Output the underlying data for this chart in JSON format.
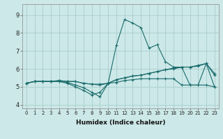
{
  "xlabel": "Humidex (Indice chaleur)",
  "ylabel": "",
  "background_color": "#cce8e8",
  "grid_color": "#aacccc",
  "line_color": "#1a6b6b",
  "xlim": [
    -0.5,
    23.5
  ],
  "ylim": [
    3.8,
    9.6
  ],
  "xticks": [
    0,
    1,
    2,
    3,
    4,
    5,
    6,
    7,
    8,
    9,
    10,
    11,
    12,
    13,
    14,
    15,
    16,
    17,
    18,
    19,
    20,
    21,
    22,
    23
  ],
  "yticks": [
    4,
    5,
    6,
    7,
    8,
    9
  ],
  "line1": {
    "x": [
      0,
      1,
      2,
      3,
      4,
      5,
      6,
      7,
      8,
      9,
      10,
      11,
      12,
      13,
      14,
      15,
      16,
      17,
      18,
      19,
      20,
      21,
      22,
      23
    ],
    "y": [
      5.2,
      5.3,
      5.3,
      5.3,
      5.3,
      5.2,
      5.0,
      4.8,
      4.55,
      4.7,
      5.2,
      7.3,
      8.75,
      8.55,
      8.3,
      7.15,
      7.35,
      6.4,
      6.1,
      6.1,
      5.1,
      5.1,
      6.3,
      5.75
    ]
  },
  "line2": {
    "x": [
      0,
      1,
      2,
      3,
      4,
      5,
      6,
      7,
      8,
      9,
      10,
      11,
      12,
      13,
      14,
      15,
      16,
      17,
      18,
      19,
      20,
      21,
      22,
      23
    ],
    "y": [
      5.2,
      5.3,
      5.3,
      5.3,
      5.35,
      5.3,
      5.3,
      5.2,
      5.15,
      5.15,
      5.2,
      5.4,
      5.5,
      5.6,
      5.65,
      5.75,
      5.85,
      5.95,
      6.05,
      6.1,
      6.1,
      6.15,
      6.3,
      5.0
    ]
  },
  "line3": {
    "x": [
      0,
      1,
      2,
      3,
      4,
      5,
      6,
      7,
      8,
      9,
      10,
      11,
      12,
      13,
      14,
      15,
      16,
      17,
      18,
      19,
      20,
      21,
      22,
      23
    ],
    "y": [
      5.2,
      5.3,
      5.3,
      5.3,
      5.3,
      5.25,
      5.1,
      4.95,
      4.7,
      4.45,
      5.2,
      5.25,
      5.35,
      5.4,
      5.45,
      5.45,
      5.45,
      5.45,
      5.45,
      5.1,
      5.1,
      5.1,
      5.1,
      5.0
    ]
  },
  "line4": {
    "x": [
      0,
      1,
      2,
      3,
      4,
      5,
      6,
      7,
      8,
      9,
      10,
      11,
      12,
      13,
      14,
      15,
      16,
      17,
      18,
      19,
      20,
      21,
      22,
      23
    ],
    "y": [
      5.2,
      5.3,
      5.3,
      5.3,
      5.35,
      5.3,
      5.3,
      5.2,
      5.15,
      5.1,
      5.2,
      5.4,
      5.5,
      5.6,
      5.65,
      5.75,
      5.85,
      5.95,
      6.0,
      6.1,
      6.1,
      6.2,
      6.3,
      5.65
    ]
  }
}
